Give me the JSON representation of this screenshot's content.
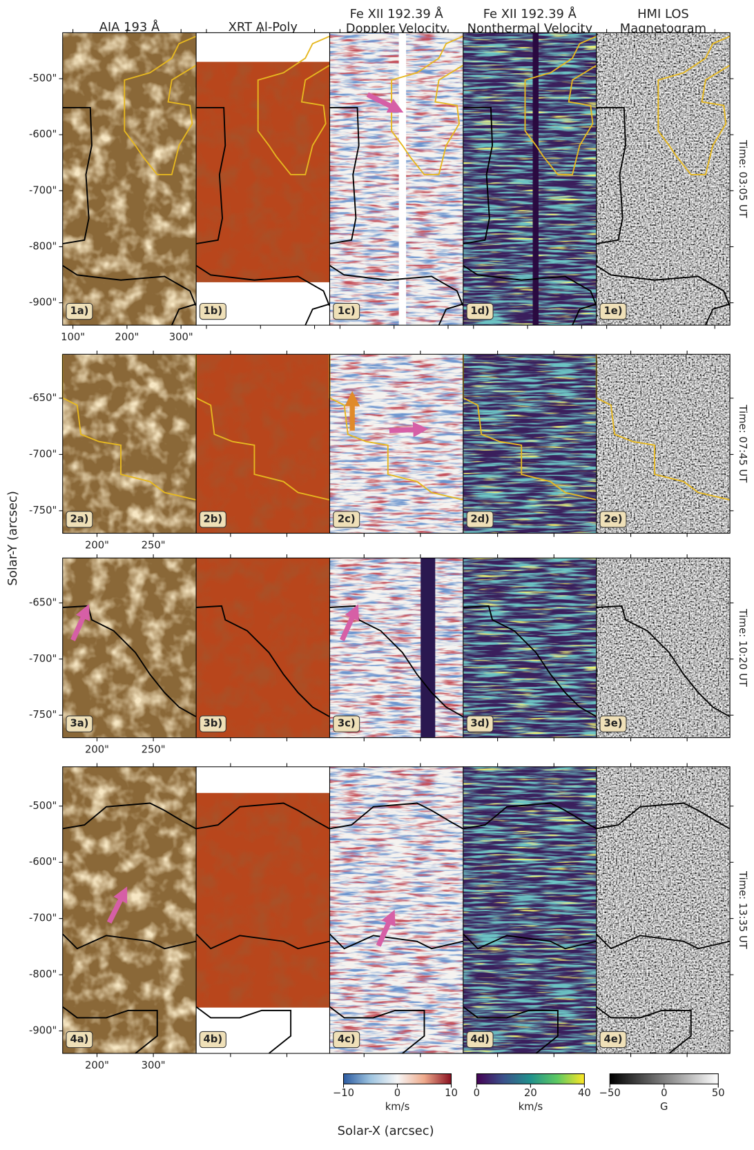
{
  "figure": {
    "column_titles": [
      [
        "AIA 193 Å"
      ],
      [
        "XRT Al-Poly"
      ],
      [
        "Fe XII 192.39 Å",
        "Doppler Velocity"
      ],
      [
        "Fe XII 192.39 Å",
        "Nonthermal Velocity"
      ],
      [
        "HMI LOS",
        "Magnetogram"
      ]
    ],
    "ylabel": "Solar-Y (arcsec)",
    "xlabel": "Solar-X (arcsec)",
    "rows": [
      {
        "time": "Time: 03:05 UT",
        "panel_labels": [
          "1a)",
          "1b)",
          "1c)",
          "1d)",
          "1e)"
        ],
        "ylim": [
          -940,
          -418
        ],
        "yticks": [
          {
            "value": -500,
            "label": "-500\""
          },
          {
            "value": -600,
            "label": "-600\""
          },
          {
            "value": -700,
            "label": "-700\""
          },
          {
            "value": -800,
            "label": "-800\""
          },
          {
            "value": -900,
            "label": "-900\""
          }
        ],
        "xlim": [
          81,
          328
        ],
        "xticks": [
          {
            "value": 100,
            "label": "100\""
          },
          {
            "value": 200,
            "label": "200\""
          },
          {
            "value": 300,
            "label": "300\""
          }
        ]
      },
      {
        "time": "Time: 07:45 UT",
        "panel_labels": [
          "2a)",
          "2b)",
          "2c)",
          "2d)",
          "2e)"
        ],
        "ylim": [
          -770,
          -611
        ],
        "yticks": [
          {
            "value": -650,
            "label": "-650\""
          },
          {
            "value": -700,
            "label": "-700\""
          },
          {
            "value": -750,
            "label": "-750\""
          }
        ],
        "xlim": [
          169.5,
          288
        ],
        "xticks": [
          {
            "value": 200,
            "label": "200\""
          },
          {
            "value": 250,
            "label": "250\""
          }
        ]
      },
      {
        "time": "Time: 10:20 UT",
        "panel_labels": [
          "3a)",
          "3b)",
          "3c)",
          "3d)",
          "3e)"
        ],
        "ylim": [
          -770,
          -610
        ],
        "yticks": [
          {
            "value": -650,
            "label": "-650\""
          },
          {
            "value": -700,
            "label": "-700\""
          },
          {
            "value": -750,
            "label": "-750\""
          }
        ],
        "xlim": [
          169.5,
          288
        ],
        "xticks": [
          {
            "value": 200,
            "label": "200\""
          },
          {
            "value": 250,
            "label": "250\""
          }
        ]
      },
      {
        "time": "Time: 13:35 UT",
        "panel_labels": [
          "4a)",
          "4b)",
          "4c)",
          "4d)",
          "4e)"
        ],
        "ylim": [
          -940,
          -430
        ],
        "yticks": [
          {
            "value": -500,
            "label": "-500\""
          },
          {
            "value": -600,
            "label": "-600\""
          },
          {
            "value": -700,
            "label": "-700\""
          },
          {
            "value": -800,
            "label": "-800\""
          },
          {
            "value": -900,
            "label": "-900\""
          }
        ],
        "xlim": [
          139,
          376
        ],
        "xticks": [
          {
            "value": 200,
            "label": "200\""
          },
          {
            "value": 300,
            "label": "300\""
          }
        ]
      }
    ],
    "colorbars": [
      {
        "lim": [
          -10,
          10
        ],
        "ticks": [
          {
            "value": -10,
            "label": "−10"
          },
          0,
          10
        ],
        "unit": "km/s"
      },
      {
        "lim": [
          0,
          40
        ],
        "ticks": [
          0,
          20,
          40
        ],
        "unit": "km/s"
      },
      {
        "lim": [
          -50,
          50
        ],
        "ticks": [
          {
            "value": -50,
            "label": "−50"
          },
          0,
          50
        ],
        "unit": "G"
      }
    ]
  }
}
